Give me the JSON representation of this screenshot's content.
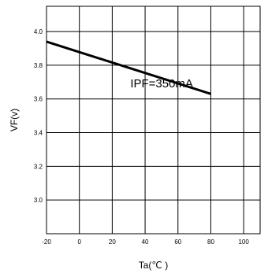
{
  "chart_data": {
    "type": "line",
    "xlabel": "Ta(℃ )",
    "ylabel": "VF(v)",
    "xlim": [
      -20,
      110
    ],
    "ylim": [
      2.8,
      4.15
    ],
    "x_ticks": [
      -20,
      0,
      20,
      40,
      60,
      80,
      100
    ],
    "x_tick_labels": [
      "-20",
      "0",
      "20",
      "40",
      "60",
      "80",
      "100"
    ],
    "y_ticks": [
      3.0,
      3.2,
      3.4,
      3.6,
      3.8,
      4.0
    ],
    "y_tick_labels": [
      "3.0",
      "3.2",
      "3.4",
      "3.6",
      "3.8",
      "4.0"
    ],
    "grid": true,
    "series": [
      {
        "x": [
          -20,
          80
        ],
        "y": [
          3.94,
          3.63
        ]
      }
    ],
    "annotations": [
      {
        "text": "IPF=350mA",
        "x": 31,
        "y": 3.67
      }
    ]
  }
}
